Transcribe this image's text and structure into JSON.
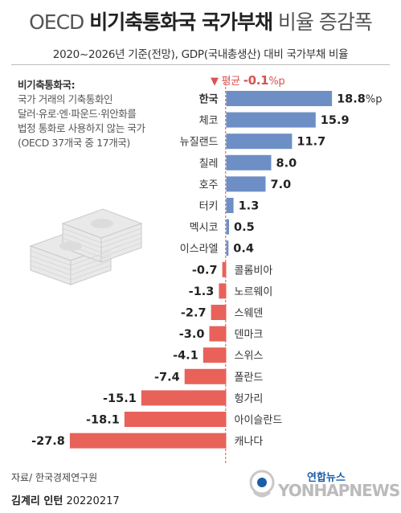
{
  "header": {
    "title_light": "OECD",
    "title_bold": "비기축통화국 국가부채",
    "title_tail": "비율 증감폭",
    "subtitle": "2020~2026년 기준(전망), GDP(국내총생산) 대비 국가부채 비율"
  },
  "note": {
    "head": "비기축통화국:",
    "lines": [
      "국가 거래의 기축통화인",
      "달러·유로·엔·파운드·위안화를",
      "법정 통화로 사용하지 않는 국가",
      "(OECD 37개국 중 17개국)"
    ]
  },
  "average": {
    "marker": "▼",
    "label": "평균",
    "value": "-0.1",
    "unit": "%p"
  },
  "footer": {
    "source": "자료/ 한국경제연구원",
    "credit_name": "김계리 인턴",
    "credit_date": "20220217",
    "logo_ko": "연합뉴스",
    "logo_en": "YONHAPNEWS"
  },
  "chart_data": {
    "type": "bar",
    "orientation": "horizontal",
    "categories": [
      "한국",
      "체코",
      "뉴질랜드",
      "칠레",
      "호주",
      "터키",
      "멕시코",
      "이스라엘",
      "콜롬비아",
      "노르웨이",
      "스웨덴",
      "덴마크",
      "스위스",
      "폴란드",
      "헝가리",
      "아이슬란드",
      "캐나다"
    ],
    "values": [
      18.8,
      15.9,
      11.7,
      8.0,
      7.0,
      1.3,
      0.5,
      0.4,
      -0.7,
      -1.3,
      -2.7,
      -3.0,
      -4.1,
      -7.4,
      -15.1,
      -18.1,
      -27.8
    ],
    "value_labels": [
      "18.8",
      "15.9",
      "11.7",
      "8.0",
      "7.0",
      "1.3",
      "0.5",
      "0.4",
      "-0.7",
      "-1.3",
      "-2.7",
      "-3.0",
      "-4.1",
      "-7.4",
      "-15.1",
      "-18.1",
      "-27.8"
    ],
    "first_value_unit": "%p",
    "reference_line": -0.1,
    "positive_color": "#6d8fc6",
    "negative_color": "#e8625a",
    "reference_color": "#d9534f",
    "highlight_category": "한국"
  }
}
